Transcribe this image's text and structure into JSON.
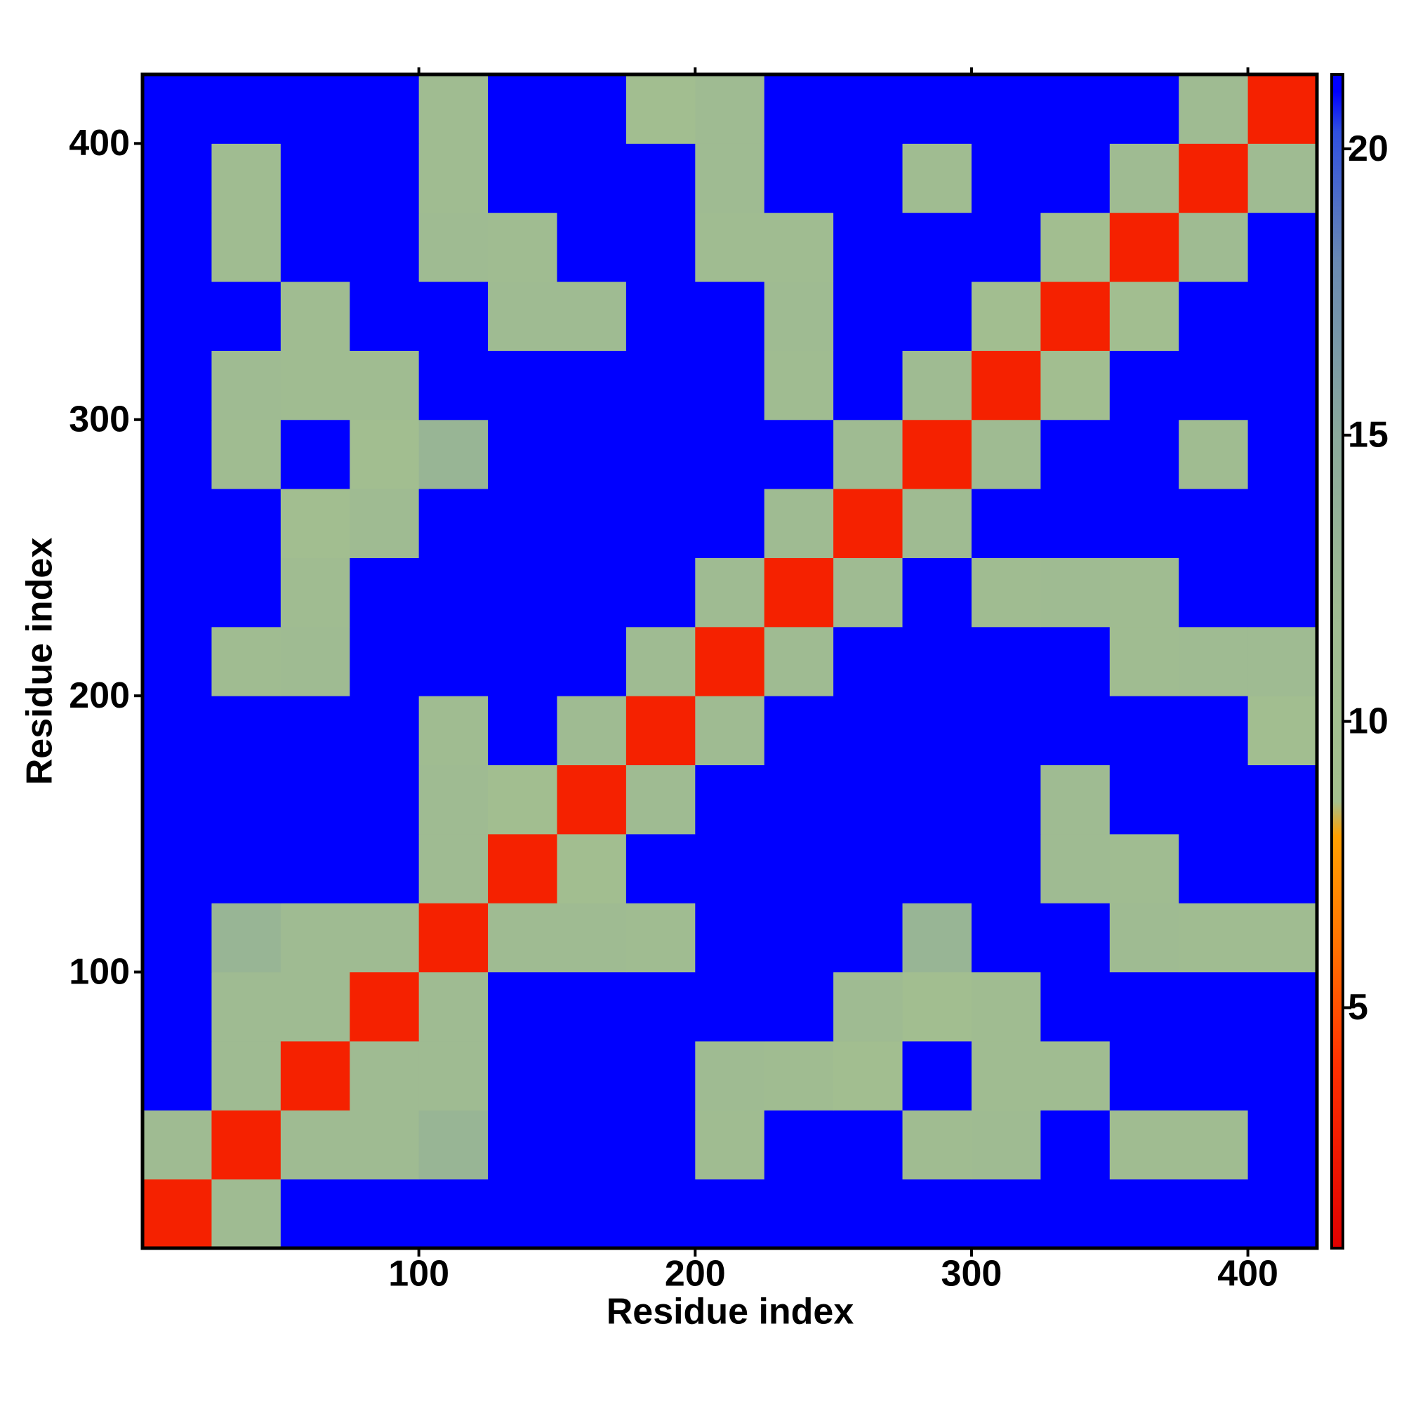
{
  "chart_data": {
    "type": "heatmap",
    "xlabel": "Residue index",
    "ylabel": "Residue index",
    "xlim": [
      0,
      425
    ],
    "ylim": [
      0,
      425
    ],
    "xticks": [
      100,
      200,
      300,
      400
    ],
    "yticks": [
      100,
      200,
      300,
      400
    ],
    "xbins": [
      0,
      25,
      50,
      75,
      100,
      125,
      150,
      175,
      200,
      225,
      250,
      275,
      300,
      325,
      350,
      375,
      400,
      425
    ],
    "ybins": [
      0,
      25,
      50,
      75,
      100,
      125,
      150,
      175,
      200,
      225,
      250,
      275,
      300,
      325,
      350,
      375,
      400,
      425
    ],
    "z": [
      [
        3,
        12,
        21,
        21,
        21,
        21,
        21,
        21,
        21,
        21,
        21,
        21,
        21,
        21,
        21,
        21,
        21
      ],
      [
        12,
        3,
        12,
        12,
        13,
        21,
        21,
        21,
        11,
        21,
        21,
        11,
        12,
        21,
        11,
        11,
        21
      ],
      [
        21,
        12,
        3,
        12,
        12,
        21,
        21,
        21,
        12,
        11,
        10,
        21,
        11,
        11,
        21,
        21,
        21
      ],
      [
        21,
        12,
        12,
        3,
        12,
        21,
        21,
        21,
        21,
        21,
        12,
        10,
        11,
        21,
        21,
        21,
        21
      ],
      [
        21,
        13,
        12,
        12,
        3,
        12,
        12,
        11,
        21,
        21,
        21,
        13,
        21,
        21,
        12,
        11,
        11
      ],
      [
        21,
        21,
        21,
        21,
        12,
        3,
        10,
        21,
        21,
        21,
        21,
        21,
        21,
        12,
        11,
        21,
        21
      ],
      [
        21,
        21,
        21,
        21,
        12,
        10,
        3,
        12,
        21,
        21,
        21,
        21,
        21,
        12,
        21,
        21,
        21
      ],
      [
        21,
        21,
        21,
        21,
        11,
        21,
        12,
        3,
        12,
        21,
        21,
        21,
        21,
        21,
        21,
        21,
        10
      ],
      [
        21,
        11,
        12,
        21,
        21,
        21,
        21,
        12,
        3,
        12,
        21,
        21,
        21,
        21,
        11,
        12,
        12
      ],
      [
        21,
        21,
        11,
        21,
        21,
        21,
        21,
        21,
        12,
        3,
        12,
        21,
        11,
        12,
        11,
        21,
        21
      ],
      [
        21,
        21,
        10,
        12,
        21,
        21,
        21,
        21,
        21,
        12,
        3,
        12,
        21,
        21,
        21,
        21,
        21
      ],
      [
        21,
        11,
        21,
        10,
        13,
        21,
        21,
        21,
        21,
        21,
        12,
        3,
        12,
        21,
        21,
        11,
        21
      ],
      [
        21,
        12,
        11,
        11,
        21,
        21,
        21,
        21,
        21,
        11,
        21,
        12,
        3,
        10,
        21,
        21,
        21
      ],
      [
        21,
        21,
        11,
        21,
        21,
        12,
        12,
        21,
        21,
        12,
        21,
        21,
        10,
        3,
        10,
        21,
        21
      ],
      [
        21,
        11,
        21,
        21,
        12,
        11,
        21,
        21,
        11,
        11,
        21,
        21,
        21,
        10,
        3,
        12,
        21
      ],
      [
        21,
        11,
        21,
        21,
        11,
        21,
        21,
        21,
        12,
        21,
        21,
        11,
        21,
        21,
        12,
        3,
        12
      ],
      [
        21,
        21,
        21,
        21,
        11,
        21,
        21,
        10,
        12,
        21,
        21,
        21,
        21,
        21,
        21,
        12,
        3
      ]
    ],
    "clim": [
      0.8,
      21.3
    ],
    "cticks": [
      5,
      10,
      15,
      20
    ],
    "colorscale": [
      [
        0.8,
        "#e00000"
      ],
      [
        4,
        "#ff3000"
      ],
      [
        6,
        "#ff7000"
      ],
      [
        8,
        "#ffa000"
      ],
      [
        8.6,
        "#a4c08e"
      ],
      [
        12,
        "#9fbb92"
      ],
      [
        15,
        "#8aa99c"
      ],
      [
        18,
        "#6a8ab2"
      ],
      [
        20.3,
        "#3050e0"
      ],
      [
        21,
        "#0000ff"
      ],
      [
        21.3,
        "#0000ff"
      ]
    ]
  }
}
